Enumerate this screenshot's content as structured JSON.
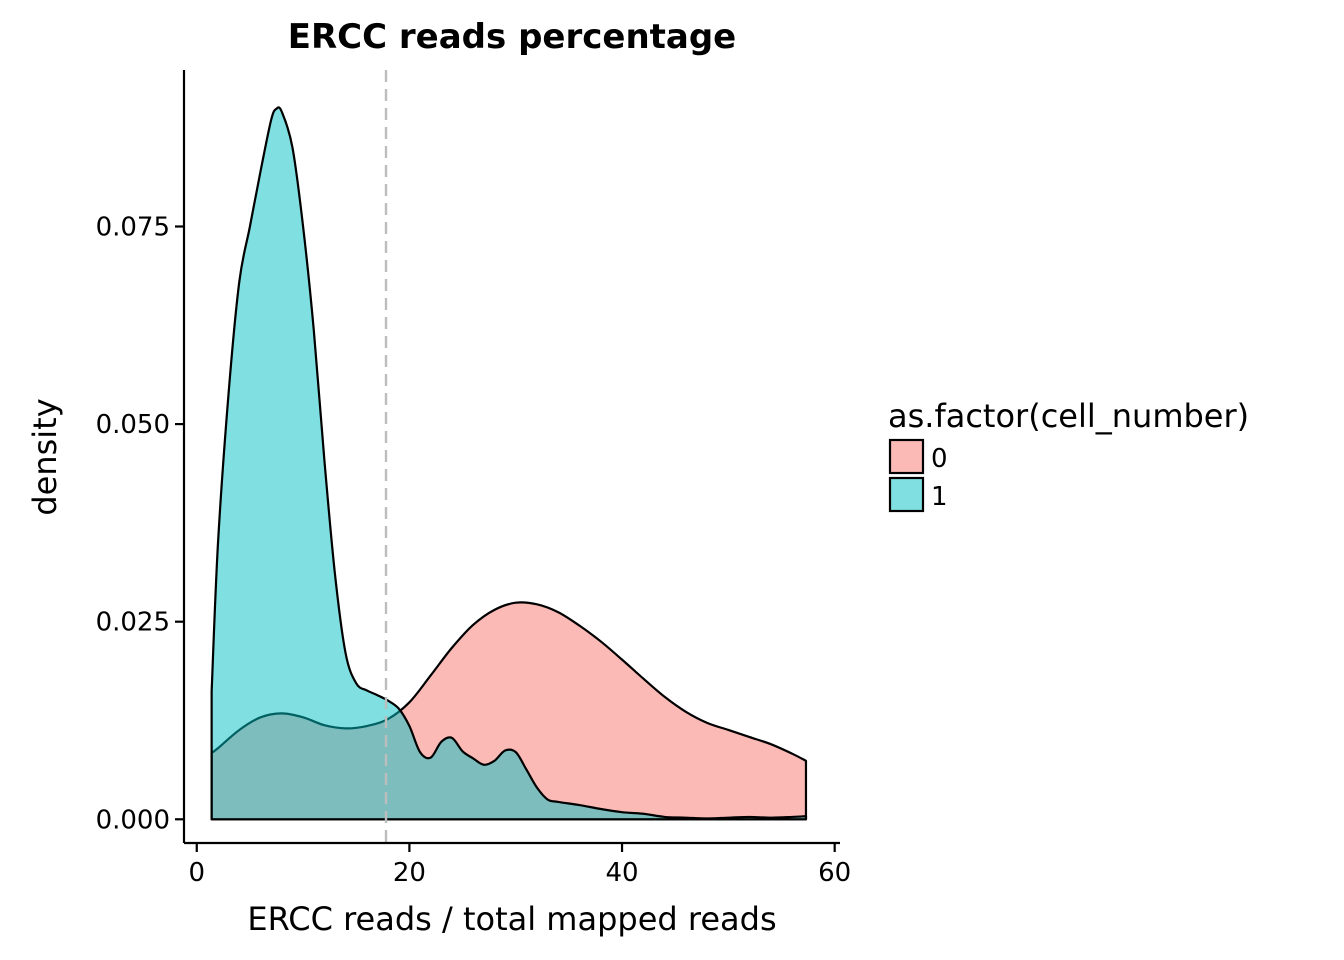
{
  "chart_data": {
    "type": "area",
    "title": "ERCC reads percentage",
    "xlabel": "ERCC reads / total mapped reads",
    "ylabel": "density",
    "xlim": [
      -1.2,
      60.5
    ],
    "ylim": [
      -0.003,
      0.0948
    ],
    "x_ticks": [
      0,
      20,
      40,
      60
    ],
    "x_tick_labels": [
      "0",
      "20",
      "40",
      "60"
    ],
    "y_ticks": [
      0.0,
      0.025,
      0.05,
      0.075
    ],
    "y_tick_labels": [
      "0.000",
      "0.025",
      "0.050",
      "0.075"
    ],
    "grid": false,
    "legend": {
      "title": "as.factor(cell_number)",
      "placement": "right"
    },
    "vline": {
      "x": 17.8,
      "color": "#bdbdbd",
      "style": "dashed"
    },
    "series": [
      {
        "name": "0",
        "color": "#F8766D",
        "fill_opacity": 0.5,
        "x": [
          1.4,
          2,
          4,
          6,
          8,
          10,
          12,
          14,
          16,
          18,
          20,
          22,
          24,
          26,
          28,
          30,
          32,
          34,
          36,
          38,
          40,
          42,
          44,
          46,
          48,
          50,
          52,
          54,
          56,
          57.3
        ],
        "y": [
          0.0084,
          0.009,
          0.0113,
          0.0129,
          0.0134,
          0.0129,
          0.0119,
          0.0115,
          0.0118,
          0.0127,
          0.0148,
          0.0182,
          0.0217,
          0.0246,
          0.0265,
          0.0274,
          0.0272,
          0.0262,
          0.0245,
          0.0225,
          0.0202,
          0.0178,
          0.0155,
          0.0136,
          0.0122,
          0.0113,
          0.0104,
          0.0095,
          0.0083,
          0.0074
        ]
      },
      {
        "name": "1",
        "color": "#00BFC4",
        "fill_opacity": 0.5,
        "x": [
          1.4,
          2,
          3,
          4,
          5,
          6,
          7,
          7.5,
          8,
          9,
          10,
          11,
          12,
          13,
          14,
          15,
          16,
          17,
          18,
          19,
          20,
          21,
          22,
          23,
          24,
          25,
          26,
          27,
          28,
          29,
          30,
          31,
          32,
          33,
          34,
          36,
          38,
          40,
          42,
          44,
          46,
          48,
          50,
          52,
          54,
          56,
          57.3
        ],
        "y": [
          0.0162,
          0.035,
          0.054,
          0.068,
          0.075,
          0.082,
          0.0885,
          0.0899,
          0.0895,
          0.085,
          0.075,
          0.062,
          0.0455,
          0.031,
          0.021,
          0.0172,
          0.0163,
          0.0157,
          0.015,
          0.014,
          0.0118,
          0.0085,
          0.0078,
          0.0098,
          0.0103,
          0.0086,
          0.0077,
          0.0069,
          0.0074,
          0.0087,
          0.0085,
          0.0063,
          0.004,
          0.0025,
          0.0022,
          0.0018,
          0.0013,
          0.0009,
          0.0007,
          0.0003,
          0.0002,
          0.0001,
          0.0002,
          0.0003,
          0.0002,
          0.0003,
          0.0004
        ]
      }
    ]
  }
}
